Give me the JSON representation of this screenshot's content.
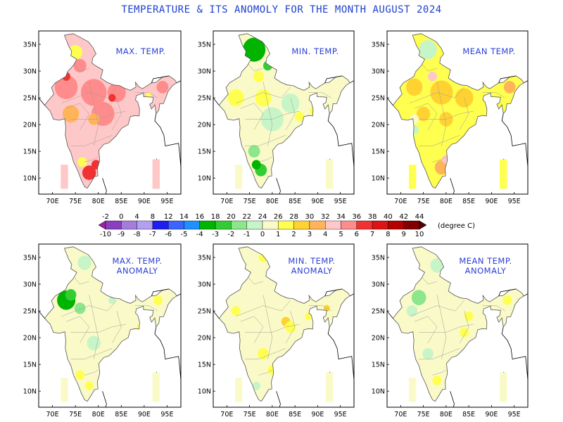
{
  "title": "TEMPERATURE & ITS  ANOMOLY FOR THE MONTH AUGUST 2024",
  "panels": [
    {
      "id": "max",
      "title": [
        "MAX. TEMP."
      ],
      "scheme": "abs-max"
    },
    {
      "id": "min",
      "title": [
        "MIN. TEMP."
      ],
      "scheme": "abs-min"
    },
    {
      "id": "mean",
      "title": [
        "MEAN TEMP."
      ],
      "scheme": "abs-mean"
    },
    {
      "id": "max-anom",
      "title": [
        "MAX. TEMP.",
        "ANOMALY"
      ],
      "scheme": "anom-max"
    },
    {
      "id": "min-anom",
      "title": [
        "MIN. TEMP.",
        "ANOMALY"
      ],
      "scheme": "anom-min"
    },
    {
      "id": "mean-anom",
      "title": [
        "MEAN TEMP.",
        "ANOMALY"
      ],
      "scheme": "anom-mean"
    }
  ],
  "axes": {
    "lon_ticks": [
      "70E",
      "75E",
      "80E",
      "85E",
      "90E",
      "95E"
    ],
    "lat_ticks": [
      "35N",
      "30N",
      "25N",
      "20N",
      "15N",
      "10N"
    ]
  },
  "colorbar": {
    "top_labels": [
      "-2",
      "0",
      "4",
      "8",
      "12",
      "14",
      "16",
      "18",
      "20",
      "22",
      "24",
      "26",
      "28",
      "30",
      "32",
      "34",
      "36",
      "38",
      "40",
      "42",
      "44"
    ],
    "bottom_labels": [
      "-10",
      "-9",
      "-8",
      "-7",
      "-6",
      "-5",
      "-4",
      "-3",
      "-2",
      "-1",
      "0",
      "1",
      "2",
      "3",
      "4",
      "5",
      "6",
      "7",
      "8",
      "9",
      "10"
    ],
    "unit": "(degree C)",
    "colors": [
      "#a020a0",
      "#8b3fbf",
      "#a47cdc",
      "#b4a0f0",
      "#1e1ef0",
      "#3c64ff",
      "#1e90ff",
      "#00b400",
      "#32cd32",
      "#8ce68c",
      "#c8f5c8",
      "#fafac8",
      "#ffff50",
      "#ffd232",
      "#ffb45a",
      "#ffc8c8",
      "#ff8c8c",
      "#f03232",
      "#dc1414",
      "#b40000",
      "#800000",
      "#500000"
    ]
  }
}
